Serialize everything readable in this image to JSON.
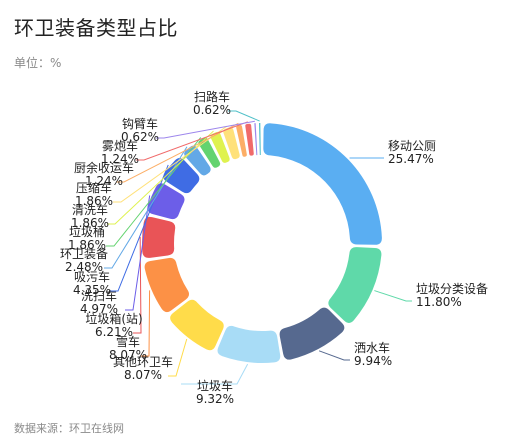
{
  "header": {
    "title": "环卫装备类型占比",
    "unit": "单位：%"
  },
  "footer": {
    "source": "数据来源：环卫在线网"
  },
  "chart_data": {
    "type": "pie",
    "variant": "donut",
    "title": "环卫装备类型占比",
    "unit": "%",
    "slices": [
      {
        "name": "移动公厕",
        "value": 25.47,
        "label": "25.47%",
        "color": "#5aaef2"
      },
      {
        "name": "垃圾分类设备",
        "value": 11.8,
        "label": "11.80%",
        "color": "#5fd9a9"
      },
      {
        "name": "洒水车",
        "value": 9.94,
        "label": "9.94%",
        "color": "#56698f"
      },
      {
        "name": "垃圾车",
        "value": 9.32,
        "label": "9.32%",
        "color": "#a8dcf6"
      },
      {
        "name": "其他环卫车",
        "value": 8.07,
        "label": "8.07%",
        "color": "#ffdc4a"
      },
      {
        "name": "雪车",
        "value": 8.07,
        "label": "8.07%",
        "color": "#fc9146"
      },
      {
        "name": "垃圾箱(站)",
        "value": 6.21,
        "label": "6.21%",
        "color": "#e95457"
      },
      {
        "name": "洗扫车",
        "value": 4.97,
        "label": "4.97%",
        "color": "#6c5ee8"
      },
      {
        "name": "吸污车",
        "value": 4.35,
        "label": "4.35%",
        "color": "#3f6ce4"
      },
      {
        "name": "环卫装备",
        "value": 2.48,
        "label": "2.48%",
        "color": "#63a8e6"
      },
      {
        "name": "垃圾桶",
        "value": 1.86,
        "label": "1.86%",
        "color": "#63d36f"
      },
      {
        "name": "清洗车",
        "value": 1.86,
        "label": "1.86%",
        "color": "#dff24f"
      },
      {
        "name": "压缩车",
        "value": 1.86,
        "label": "1.86%",
        "color": "#ffe17a"
      },
      {
        "name": "厨余收运车",
        "value": 1.24,
        "label": "1.24%",
        "color": "#fcae66"
      },
      {
        "name": "雾炮车",
        "value": 1.24,
        "label": "1.24%",
        "color": "#f06a6a"
      },
      {
        "name": "钩臂车",
        "value": 0.62,
        "label": "0.62%",
        "color": "#9d86ec"
      },
      {
        "name": "扫路车",
        "value": 0.62,
        "label": "0.62%",
        "color": "#4fc0c8"
      }
    ]
  }
}
